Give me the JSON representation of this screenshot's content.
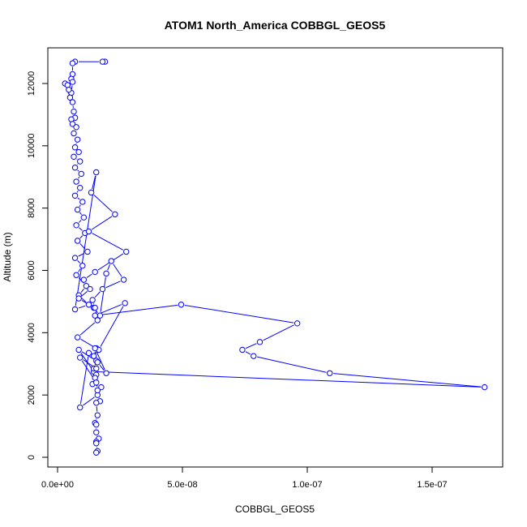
{
  "chart_data": {
    "type": "line",
    "title": "ATOM1 North_America COBBGL_GEOS5",
    "xlabel": "COBBGL_GEOS5",
    "ylabel": "Altitude (m)",
    "xlim": [
      -3.5e-09,
      1.77e-07
    ],
    "ylim": [
      -200,
      13100
    ],
    "x_ticks": [
      0,
      5e-08,
      1e-07,
      1.5e-07
    ],
    "x_tick_labels": [
      "0.0e+00",
      "5.0e-08",
      "1.0e-07",
      "1.5e-07"
    ],
    "y_ticks": [
      0,
      2000,
      4000,
      6000,
      8000,
      10000,
      12000
    ],
    "y_tick_labels": [
      "0",
      "2000",
      "4000",
      "6000",
      "8000",
      "10000",
      "12000"
    ],
    "grid": false,
    "colors": {
      "series": "#0000ff",
      "frame": "#000000",
      "background": "#ffffff"
    },
    "series": [
      {
        "x": [
          1.9e-08,
          1.8e-08,
          7e-09,
          6e-09,
          6e-09,
          5.5e-09,
          6e-09,
          5.5e-09,
          5e-09,
          3e-09,
          4e-09,
          4.5e-09,
          6e-09,
          6.5e-09,
          7e-09,
          5.5e-09,
          6e-09,
          7.5e-09,
          6.5e-09,
          8e-09,
          7e-09,
          8.5e-09,
          6.5e-09,
          9e-09,
          7e-09,
          9.5e-09,
          7.5e-09,
          9e-09,
          7e-09,
          1e-08,
          8e-09,
          1.05e-08,
          7.5e-09,
          1.1e-08,
          8e-09,
          1.2e-08,
          7e-09,
          1e-08,
          7.5e-09,
          1.15e-08,
          8.5e-09,
          1.25e-08,
          7e-09,
          1.55e-08,
          1.35e-08,
          2.3e-08,
          1.25e-08,
          2.75e-08,
          1.5e-08,
          1.05e-08,
          1.3e-08,
          8.5e-09,
          1.45e-08,
          1.7e-08,
          1.95e-08,
          2.15e-08,
          2.65e-08,
          1.8e-08,
          1.4e-08,
          1.5e-08,
          1.6e-08,
          8e-09,
          1.55e-08,
          1.45e-08,
          1.65e-08,
          2.7e-08,
          1.5e-08,
          4.95e-08,
          9.6e-08,
          8.1e-08,
          7.4e-08,
          7.85e-08,
          1.09e-07,
          1.71e-07,
          1.45e-08,
          8.5e-09,
          1.55e-08,
          1.45e-08,
          1.55e-08,
          1.5e-08,
          1.4e-08,
          1.75e-08,
          1.6e-08,
          9e-09,
          1.25e-08,
          1.6e-08,
          1.95e-08,
          1.5e-08,
          1.55e-08,
          9e-09,
          1.55e-08,
          1.6e-08,
          1.7e-08,
          1.55e-08,
          1.6e-08,
          1.5e-08,
          1.55e-08,
          1.55e-08,
          1.65e-08,
          1.55e-08,
          1.55e-08,
          1.6e-08,
          1.55e-08
        ],
        "y": [
          12700,
          12700,
          12700,
          12650,
          12300,
          12150,
          12050,
          11700,
          11550,
          12000,
          11950,
          11800,
          11400,
          11100,
          10900,
          10850,
          10700,
          10600,
          10400,
          10200,
          9950,
          9800,
          9650,
          9500,
          9300,
          9100,
          8850,
          8650,
          8400,
          8200,
          7950,
          7700,
          7450,
          7200,
          6950,
          6600,
          6400,
          6150,
          5850,
          5500,
          5200,
          4900,
          4750,
          9150,
          8500,
          7800,
          7250,
          6600,
          5950,
          5700,
          5400,
          5100,
          4800,
          4550,
          5900,
          6300,
          5700,
          5400,
          5050,
          4800,
          4400,
          3850,
          3500,
          3250,
          3450,
          4950,
          4550,
          4900,
          4300,
          3700,
          3450,
          3250,
          2700,
          2250,
          2750,
          3450,
          3100,
          2850,
          2650,
          2550,
          2350,
          2250,
          2000,
          1600,
          3350,
          3050,
          2700,
          3500,
          2850,
          3200,
          2400,
          2150,
          1800,
          1750,
          1350,
          1100,
          1050,
          800,
          600,
          500,
          450,
          200,
          150
        ]
      }
    ]
  }
}
